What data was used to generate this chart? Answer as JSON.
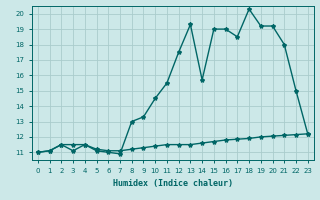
{
  "xlabel": "Humidex (Indice chaleur)",
  "background_color": "#cce8e8",
  "grid_color": "#aacccc",
  "line_color": "#006666",
  "xlim": [
    -0.5,
    23.5
  ],
  "ylim": [
    10.5,
    20.5
  ],
  "yticks": [
    11,
    12,
    13,
    14,
    15,
    16,
    17,
    18,
    19,
    20
  ],
  "xticks": [
    0,
    1,
    2,
    3,
    4,
    5,
    6,
    7,
    8,
    9,
    10,
    11,
    12,
    13,
    14,
    15,
    16,
    17,
    18,
    19,
    20,
    21,
    22,
    23
  ],
  "line1_x": [
    0,
    1,
    2,
    3,
    4,
    5,
    6,
    7,
    8,
    9,
    10,
    11,
    12,
    13,
    14,
    15,
    16,
    17,
    18,
    19,
    20,
    21,
    22,
    23
  ],
  "line1_y": [
    11,
    11.1,
    11.5,
    11.1,
    11.5,
    11.1,
    11.0,
    10.9,
    13.0,
    13.3,
    14.5,
    15.5,
    17.5,
    19.3,
    15.7,
    19.0,
    19.0,
    18.5,
    20.3,
    19.2,
    19.2,
    18.0,
    15.0,
    12.2
  ],
  "line2_x": [
    0,
    1,
    2,
    3,
    4,
    5,
    6,
    7,
    8,
    9,
    10,
    11,
    12,
    13,
    14,
    15,
    16,
    17,
    18,
    19,
    20,
    21,
    22,
    23
  ],
  "line2_y": [
    11.0,
    11.1,
    11.5,
    11.5,
    11.5,
    11.2,
    11.1,
    11.1,
    11.2,
    11.3,
    11.4,
    11.5,
    11.5,
    11.5,
    11.6,
    11.7,
    11.8,
    11.85,
    11.9,
    12.0,
    12.05,
    12.1,
    12.15,
    12.2
  ],
  "marker": "*",
  "markersize": 3,
  "linewidth": 1.0,
  "tick_fontsize": 5,
  "xlabel_fontsize": 6
}
